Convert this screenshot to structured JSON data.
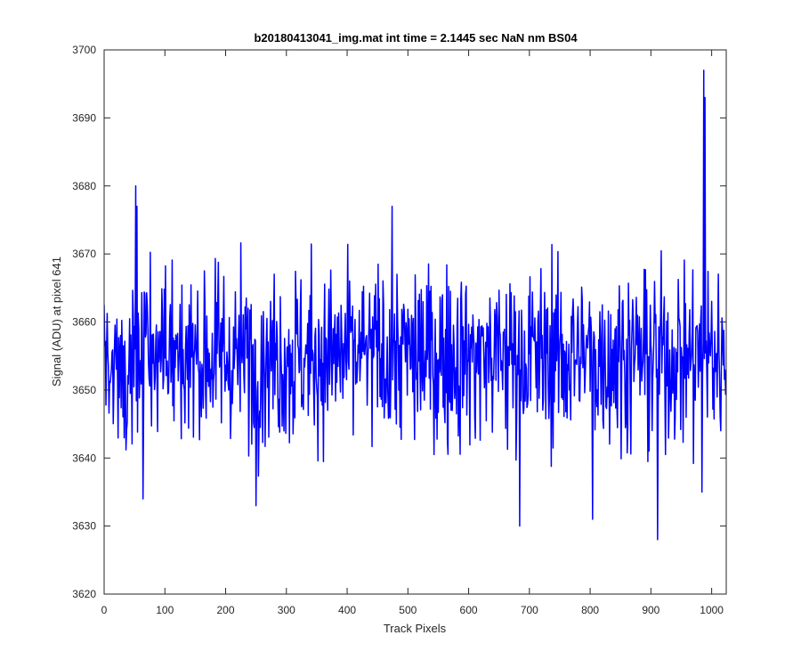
{
  "chart_data": {
    "type": "line",
    "title": "b20180413041_img.mat int time = 2.1445 sec  NaN nm BS04",
    "xlabel": "Track Pixels",
    "ylabel": "Signal (ADU) at pixel 641",
    "xlim": [
      0,
      1024
    ],
    "ylim": [
      3620,
      3700
    ],
    "xticks": [
      0,
      100,
      200,
      300,
      400,
      500,
      600,
      700,
      800,
      900,
      1000
    ],
    "yticks": [
      3620,
      3630,
      3640,
      3650,
      3660,
      3670,
      3680,
      3690,
      3700
    ],
    "grid": false,
    "series": [
      {
        "color": "#0000ff",
        "n_points": 1024,
        "mean": 3655,
        "noise_std": 6.5,
        "notable_points": [
          {
            "x": 52,
            "y": 3680
          },
          {
            "x": 54,
            "y": 3677
          },
          {
            "x": 64,
            "y": 3634
          },
          {
            "x": 250,
            "y": 3633
          },
          {
            "x": 474,
            "y": 3677
          },
          {
            "x": 684,
            "y": 3630
          },
          {
            "x": 804,
            "y": 3631
          },
          {
            "x": 911,
            "y": 3628
          },
          {
            "x": 987,
            "y": 3697
          },
          {
            "x": 989,
            "y": 3693
          },
          {
            "x": 984,
            "y": 3635
          }
        ]
      }
    ]
  }
}
